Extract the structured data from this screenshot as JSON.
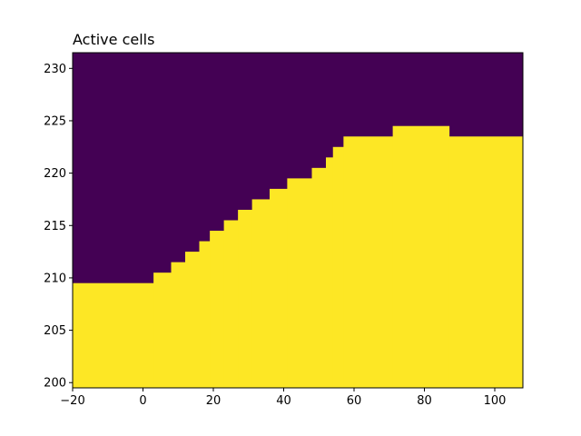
{
  "chart_data": {
    "type": "heatmap",
    "title": "Active cells",
    "xlabel": "",
    "ylabel": "",
    "xlim": [
      -20,
      108
    ],
    "ylim": [
      199.5,
      231.5
    ],
    "grid": false,
    "colors": {
      "inactive": "#440154",
      "active": "#fde725"
    },
    "x_ticks": [
      -20,
      0,
      20,
      40,
      60,
      80,
      100
    ],
    "x_tick_labels": [
      "−20",
      "0",
      "20",
      "40",
      "60",
      "80",
      "100"
    ],
    "y_ticks": [
      200,
      205,
      210,
      215,
      220,
      225,
      230
    ],
    "y_tick_labels": [
      "200",
      "205",
      "210",
      "215",
      "220",
      "225",
      "230"
    ],
    "active_profile": [
      {
        "x_start": -20,
        "x_end": 3,
        "top": 209.5
      },
      {
        "x_start": 3,
        "x_end": 8,
        "top": 210.5
      },
      {
        "x_start": 8,
        "x_end": 12,
        "top": 211.5
      },
      {
        "x_start": 12,
        "x_end": 16,
        "top": 212.5
      },
      {
        "x_start": 16,
        "x_end": 19,
        "top": 213.5
      },
      {
        "x_start": 19,
        "x_end": 23,
        "top": 214.5
      },
      {
        "x_start": 23,
        "x_end": 27,
        "top": 215.5
      },
      {
        "x_start": 27,
        "x_end": 31,
        "top": 216.5
      },
      {
        "x_start": 31,
        "x_end": 36,
        "top": 217.5
      },
      {
        "x_start": 36,
        "x_end": 41,
        "top": 218.5
      },
      {
        "x_start": 41,
        "x_end": 48,
        "top": 219.5
      },
      {
        "x_start": 48,
        "x_end": 52,
        "top": 220.5
      },
      {
        "x_start": 52,
        "x_end": 54,
        "top": 221.5
      },
      {
        "x_start": 54,
        "x_end": 57,
        "top": 222.5
      },
      {
        "x_start": 57,
        "x_end": 71,
        "top": 223.5
      },
      {
        "x_start": 71,
        "x_end": 87,
        "top": 224.5
      },
      {
        "x_start": 87,
        "x_end": 108,
        "top": 223.5
      }
    ]
  }
}
